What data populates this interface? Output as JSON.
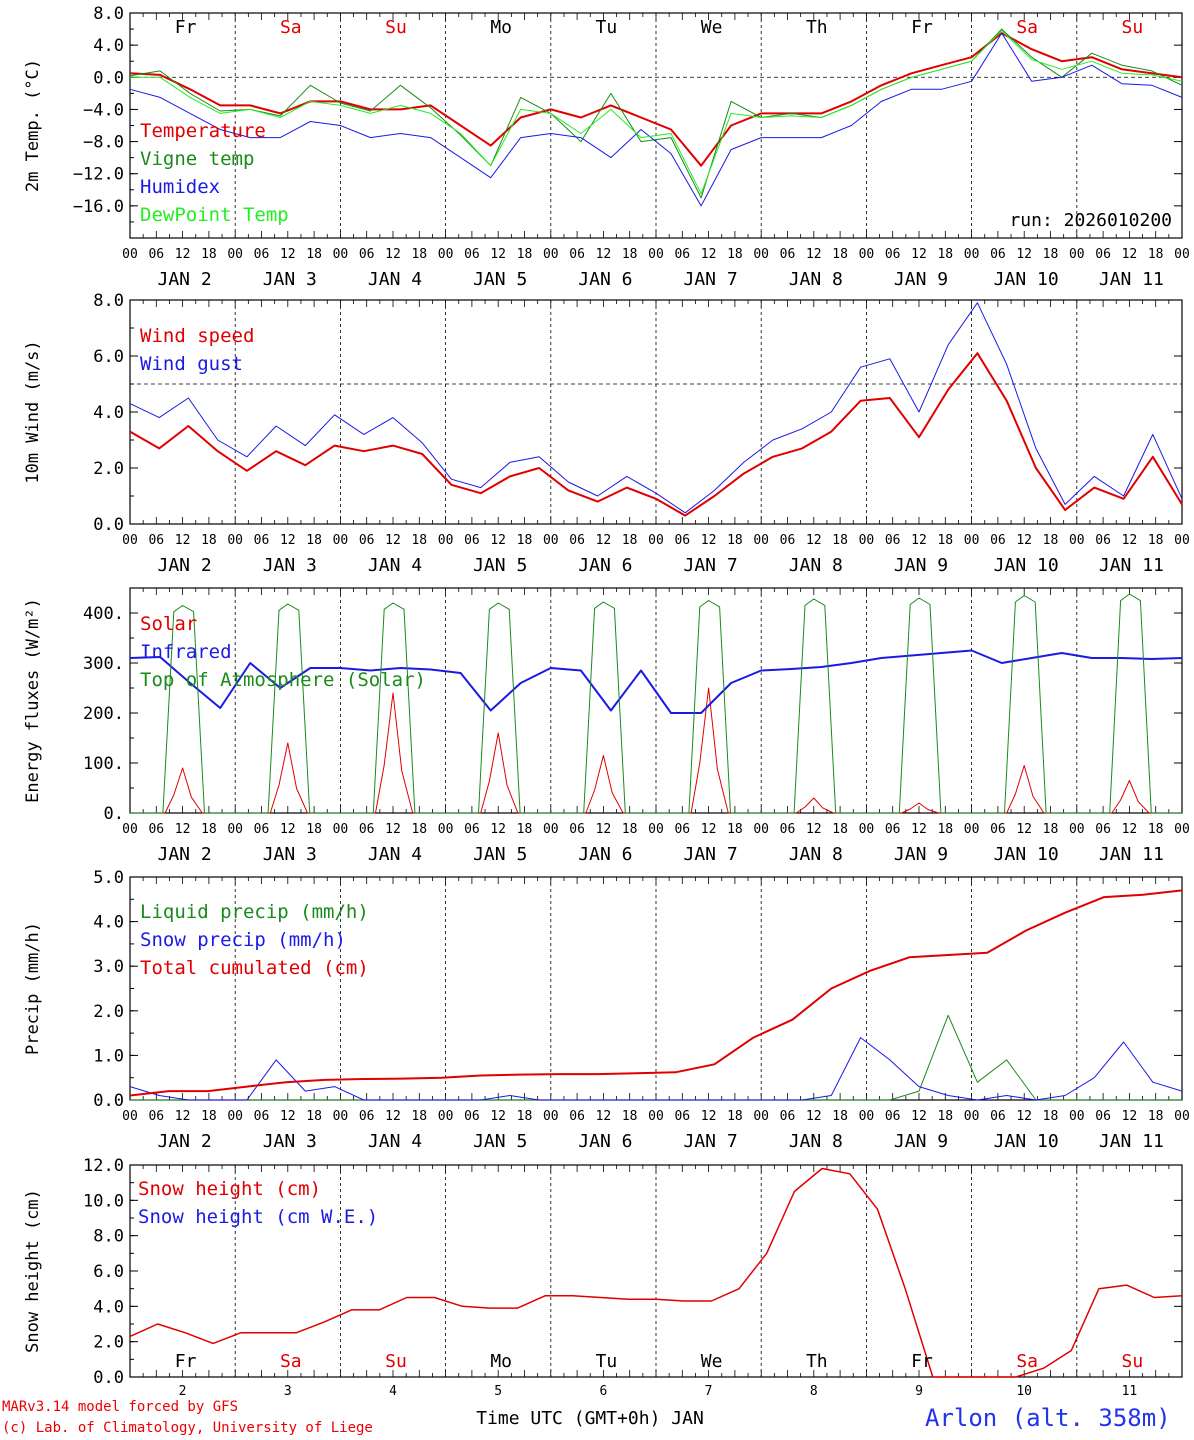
{
  "colors": {
    "red": "#e00000",
    "green": "#1a8a1a",
    "blue": "#1a1ae6",
    "lightgreen": "#22ee22",
    "weekend": "#e00000",
    "black": "#000000"
  },
  "days": [
    {
      "abbr": "Fr",
      "weekend": false,
      "date": "JAN  2",
      "num": "2"
    },
    {
      "abbr": "Sa",
      "weekend": true,
      "date": "JAN  3",
      "num": "3"
    },
    {
      "abbr": "Su",
      "weekend": true,
      "date": "JAN  4",
      "num": "4"
    },
    {
      "abbr": "Mo",
      "weekend": false,
      "date": "JAN  5",
      "num": "5"
    },
    {
      "abbr": "Tu",
      "weekend": false,
      "date": "JAN  6",
      "num": "6"
    },
    {
      "abbr": "We",
      "weekend": false,
      "date": "JAN  7",
      "num": "7"
    },
    {
      "abbr": "Th",
      "weekend": false,
      "date": "JAN  8",
      "num": "8"
    },
    {
      "abbr": "Fr",
      "weekend": false,
      "date": "JAN  9",
      "num": "9"
    },
    {
      "abbr": "Sa",
      "weekend": true,
      "date": "JAN 10",
      "num": "10"
    },
    {
      "abbr": "Su",
      "weekend": true,
      "date": "JAN 11",
      "num": "11"
    }
  ],
  "hour_labels": [
    "00",
    "06",
    "12",
    "18"
  ],
  "final_hour_label": "00",
  "bottom": {
    "xlabel": "Time UTC (GMT+0h) JAN",
    "credit_line1": "MARv3.14 model forced by GFS",
    "credit_line2": "(c) Lab. of Climatology, University of Liege",
    "station": "Arlon (alt. 358m)"
  },
  "chart_data": [
    {
      "type": "line",
      "id": "temp",
      "ylabel": "2m Temp. (°C)",
      "ylim": [
        -20,
        8
      ],
      "yticks": [
        8,
        4,
        0,
        -4,
        -8,
        -12,
        -16
      ],
      "ytick_labels": [
        "8.0",
        "4.0",
        "0.0",
        "−4.0",
        "−8.0",
        "−12.0",
        "−16.0"
      ],
      "ref_line": 0,
      "annotation": "run: 2026010200",
      "day_labels": "top",
      "x_hours": [
        0,
        6,
        12,
        18,
        24,
        30,
        36,
        42,
        48,
        54,
        60,
        66,
        72,
        78,
        84,
        90,
        96,
        102,
        108,
        114,
        120,
        126,
        132,
        138,
        144,
        150,
        156,
        162,
        168,
        174,
        180,
        186,
        192,
        198,
        204,
        210,
        216,
        222,
        228,
        234,
        240
      ],
      "series": [
        {
          "name": "Temperature",
          "color": "red",
          "width": 2,
          "values": [
            0.5,
            0.3,
            -1.5,
            -3.5,
            -3.5,
            -4.5,
            -3,
            -3,
            -4,
            -4,
            -3.5,
            -6,
            -8.5,
            -5,
            -4,
            -5,
            -3.5,
            -5,
            -6.5,
            -11,
            -6,
            -4.5,
            -4.5,
            -4.5,
            -3,
            -1,
            0.5,
            1.5,
            2.5,
            5.5,
            3.5,
            2,
            2.5,
            1,
            0.5,
            0
          ]
        },
        {
          "name": "Vigne temp",
          "color": "green",
          "width": 1,
          "values": [
            0.2,
            0.8,
            -2,
            -4.2,
            -4,
            -4.8,
            -1,
            -3.2,
            -4.2,
            -1,
            -3.8,
            -7.2,
            -11,
            -2.5,
            -4.5,
            -8,
            -2,
            -8,
            -7.5,
            -15,
            -3,
            -5,
            -4.5,
            -5,
            -3.5,
            -1.5,
            0,
            1,
            2,
            6,
            2.5,
            0,
            3,
            1.5,
            0.8,
            -1
          ]
        },
        {
          "name": "Humidex",
          "color": "blue",
          "width": 1,
          "values": [
            -1.5,
            -2.5,
            -4.5,
            -6.5,
            -7.5,
            -7.5,
            -5.5,
            -6,
            -7.5,
            -7,
            -7.5,
            -10,
            -12.5,
            -7.5,
            -7,
            -7.5,
            -10,
            -6.5,
            -9.5,
            -16,
            -9,
            -7.5,
            -7.5,
            -7.5,
            -6,
            -3,
            -1.5,
            -1.5,
            -0.5,
            5.5,
            -0.5,
            0,
            1.5,
            -0.8,
            -1,
            -2.5
          ]
        },
        {
          "name": "DewPoint Temp",
          "color": "lightgreen",
          "width": 1,
          "values": [
            0,
            0,
            -2.5,
            -4.5,
            -4,
            -5,
            -3,
            -3.5,
            -4.5,
            -3.5,
            -4.5,
            -7,
            -11,
            -4,
            -4.5,
            -7,
            -4,
            -7.5,
            -7,
            -14.5,
            -4.5,
            -5,
            -4.8,
            -5,
            -3.5,
            -1.5,
            0,
            1,
            2,
            5.8,
            2.2,
            1,
            2,
            0.5,
            0.3,
            -0.5
          ]
        }
      ]
    },
    {
      "type": "line",
      "id": "wind",
      "ylabel": "10m Wind (m/s)",
      "ylim": [
        0,
        8
      ],
      "yticks": [
        8,
        6,
        4,
        2,
        0
      ],
      "ytick_labels": [
        "8.0",
        "6.0",
        "4.0",
        "2.0",
        "0.0"
      ],
      "ref_line": 5,
      "day_labels": "none",
      "series": [
        {
          "name": "Wind speed",
          "color": "red",
          "width": 2,
          "values": [
            3.3,
            2.7,
            3.5,
            2.6,
            1.9,
            2.6,
            2.1,
            2.8,
            2.6,
            2.8,
            2.5,
            1.4,
            1.1,
            1.7,
            2.0,
            1.2,
            0.8,
            1.3,
            0.9,
            0.3,
            1.0,
            1.8,
            2.4,
            2.7,
            3.3,
            4.4,
            4.5,
            3.1,
            4.8,
            6.1,
            4.4,
            2.0,
            0.5,
            1.3,
            0.9,
            2.4,
            0.7
          ]
        },
        {
          "name": "Wind gust",
          "color": "blue",
          "width": 1,
          "values": [
            4.3,
            3.8,
            4.5,
            3.0,
            2.4,
            3.5,
            2.8,
            3.9,
            3.2,
            3.8,
            2.9,
            1.6,
            1.3,
            2.2,
            2.4,
            1.5,
            1.0,
            1.7,
            1.1,
            0.4,
            1.2,
            2.2,
            3.0,
            3.4,
            4.0,
            5.6,
            5.9,
            4.0,
            6.4,
            7.9,
            5.7,
            2.7,
            0.7,
            1.7,
            1.0,
            3.2,
            0.9
          ]
        }
      ]
    },
    {
      "type": "line",
      "id": "energy",
      "ylabel": "Energy fluxes (W/m²)",
      "ylim": [
        0,
        450
      ],
      "yticks": [
        400,
        300,
        200,
        100,
        0
      ],
      "ytick_labels": [
        "400.",
        "300.",
        "200.",
        "100.",
        "0."
      ],
      "day_labels": "none",
      "series": [
        {
          "name": "Solar",
          "color": "red",
          "width": 1,
          "peaks": [
            90,
            140,
            240,
            160,
            115,
            250,
            30,
            20,
            95,
            65
          ]
        },
        {
          "name": "Infrared",
          "color": "blue",
          "width": 2,
          "values": [
            310,
            312,
            260,
            210,
            300,
            250,
            290,
            290,
            285,
            290,
            287,
            280,
            205,
            260,
            290,
            285,
            205,
            285,
            200,
            200,
            260,
            285,
            288,
            292,
            300,
            310,
            315,
            320,
            325,
            300,
            310,
            320,
            310,
            310,
            308,
            310
          ]
        },
        {
          "name": "Top of Atmosphere (Solar)",
          "color": "green",
          "width": 1,
          "peaks": [
            415,
            418,
            420,
            420,
            422,
            425,
            428,
            430,
            435,
            438
          ]
        }
      ]
    },
    {
      "type": "line",
      "id": "precip",
      "ylabel": "Precip (mm/h)",
      "ylim": [
        0,
        5
      ],
      "yticks": [
        5,
        4,
        3,
        2,
        1,
        0
      ],
      "ytick_labels": [
        "5.0",
        "4.0",
        "3.0",
        "2.0",
        "1.0",
        "0.0"
      ],
      "day_labels": "none",
      "series": [
        {
          "name": "Liquid precip (mm/h)",
          "color": "green",
          "width": 1,
          "values": [
            0,
            0,
            0,
            0,
            0,
            0,
            0,
            0,
            0,
            0,
            0,
            0,
            0,
            0,
            0,
            0,
            0,
            0,
            0,
            0,
            0,
            0,
            0,
            0,
            0,
            0,
            0,
            0.2,
            1.9,
            0.4,
            0.9,
            0,
            0,
            0,
            0,
            0,
            0
          ]
        },
        {
          "name": "Snow precip (mm/h)",
          "color": "blue",
          "width": 1,
          "values": [
            0.3,
            0.1,
            0,
            0,
            0,
            0.9,
            0.2,
            0.3,
            0,
            0,
            0,
            0,
            0,
            0.1,
            0,
            0,
            0,
            0,
            0,
            0,
            0,
            0,
            0,
            0,
            0.1,
            1.4,
            0.9,
            0.3,
            0.1,
            0,
            0.1,
            0,
            0.1,
            0.5,
            1.3,
            0.4,
            0.2
          ]
        },
        {
          "name": "Total cumulated (cm)",
          "color": "red",
          "width": 2,
          "values": [
            0.1,
            0.2,
            0.2,
            0.3,
            0.4,
            0.45,
            0.47,
            0.48,
            0.5,
            0.55,
            0.57,
            0.58,
            0.58,
            0.6,
            0.62,
            0.8,
            1.4,
            1.8,
            2.5,
            2.9,
            3.2,
            3.25,
            3.3,
            3.8,
            4.2,
            4.55,
            4.6,
            4.7
          ]
        }
      ]
    },
    {
      "type": "line",
      "id": "snow",
      "ylabel": "Snow height (cm)",
      "ylim": [
        0,
        12
      ],
      "yticks": [
        12,
        10,
        8,
        6,
        4,
        2,
        0
      ],
      "ytick_labels": [
        "12.0",
        "10.0",
        "8.0",
        "6.0",
        "4.0",
        "2.0",
        "0.0"
      ],
      "day_labels": "bottom",
      "series": [
        {
          "name": "Snow height (cm)",
          "color": "red",
          "width": 1.5,
          "values": [
            2.3,
            3.0,
            2.5,
            1.9,
            2.5,
            2.5,
            2.5,
            3.1,
            3.8,
            3.8,
            4.5,
            4.5,
            4.0,
            3.9,
            3.9,
            4.6,
            4.6,
            4.5,
            4.4,
            4.4,
            4.3,
            4.3,
            5.0,
            7.0,
            10.5,
            11.8,
            11.5,
            9.5,
            5.0,
            0.0,
            0.0,
            0.0,
            0.0,
            0.5,
            1.5,
            5.0,
            5.2,
            4.5,
            4.6
          ]
        },
        {
          "name": "Snow height (cm W.E.)",
          "color": "blue",
          "width": 1,
          "values": []
        }
      ]
    }
  ]
}
